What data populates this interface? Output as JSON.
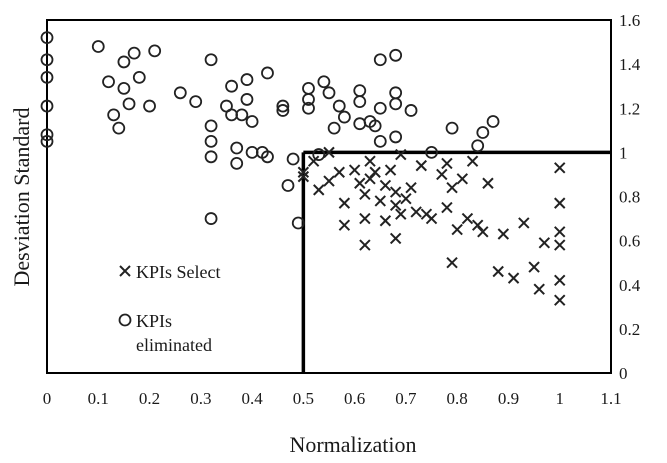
{
  "chart_data": {
    "type": "scatter",
    "xlabel": "Normalization",
    "ylabel": "Desviation Standard",
    "xlim": [
      0,
      1.1
    ],
    "ylim": [
      0,
      1.6
    ],
    "x_ticks": [
      "0",
      "0.1",
      "0.2",
      "0.3",
      "0.4",
      "0.5",
      "0.6",
      "0.7",
      "0.8",
      "0.9",
      "1",
      "1.1"
    ],
    "y_ticks": [
      "0",
      "0.2",
      "0.4",
      "0.6",
      "0.8",
      "1",
      "1.2",
      "1.4",
      "1.6"
    ],
    "y_axis_side": "right",
    "grid": false,
    "legend_position": "bottom-left",
    "threshold_lines": {
      "x": 0.5,
      "y": 1.0
    },
    "series": [
      {
        "name": "KPIs Select",
        "marker": "x",
        "points": [
          [
            0.5,
            0.91
          ],
          [
            0.5,
            0.89
          ],
          [
            0.52,
            0.96
          ],
          [
            0.53,
            0.83
          ],
          [
            0.55,
            0.87
          ],
          [
            0.55,
            1.0
          ],
          [
            0.57,
            0.91
          ],
          [
            0.58,
            0.77
          ],
          [
            0.58,
            0.67
          ],
          [
            0.6,
            0.92
          ],
          [
            0.61,
            0.86
          ],
          [
            0.62,
            0.81
          ],
          [
            0.62,
            0.7
          ],
          [
            0.62,
            0.58
          ],
          [
            0.63,
            0.88
          ],
          [
            0.63,
            0.96
          ],
          [
            0.64,
            0.91
          ],
          [
            0.65,
            0.78
          ],
          [
            0.66,
            0.69
          ],
          [
            0.66,
            0.85
          ],
          [
            0.67,
            0.92
          ],
          [
            0.68,
            0.82
          ],
          [
            0.68,
            0.76
          ],
          [
            0.68,
            0.61
          ],
          [
            0.69,
            0.72
          ],
          [
            0.69,
            0.99
          ],
          [
            0.7,
            0.79
          ],
          [
            0.71,
            0.84
          ],
          [
            0.72,
            0.73
          ],
          [
            0.73,
            0.94
          ],
          [
            0.74,
            0.72
          ],
          [
            0.75,
            0.7
          ],
          [
            0.77,
            0.9
          ],
          [
            0.78,
            0.75
          ],
          [
            0.78,
            0.95
          ],
          [
            0.79,
            0.84
          ],
          [
            0.79,
            0.5
          ],
          [
            0.8,
            0.65
          ],
          [
            0.81,
            0.88
          ],
          [
            0.82,
            0.7
          ],
          [
            0.83,
            0.96
          ],
          [
            0.84,
            0.67
          ],
          [
            0.85,
            0.64
          ],
          [
            0.86,
            0.86
          ],
          [
            0.88,
            0.46
          ],
          [
            0.89,
            0.63
          ],
          [
            0.91,
            0.43
          ],
          [
            0.93,
            0.68
          ],
          [
            0.95,
            0.48
          ],
          [
            0.96,
            0.38
          ],
          [
            0.97,
            0.59
          ],
          [
            1.0,
            0.93
          ],
          [
            1.0,
            0.77
          ],
          [
            1.0,
            0.64
          ],
          [
            1.0,
            0.58
          ],
          [
            1.0,
            0.42
          ],
          [
            1.0,
            0.33
          ]
        ]
      },
      {
        "name": "KPIs\neliminated",
        "marker": "o",
        "points": [
          [
            0.0,
            1.52
          ],
          [
            0.0,
            1.42
          ],
          [
            0.0,
            1.34
          ],
          [
            0.0,
            1.21
          ],
          [
            0.0,
            1.08
          ],
          [
            0.0,
            1.05
          ],
          [
            0.1,
            1.48
          ],
          [
            0.12,
            1.32
          ],
          [
            0.13,
            1.17
          ],
          [
            0.14,
            1.11
          ],
          [
            0.15,
            1.41
          ],
          [
            0.15,
            1.29
          ],
          [
            0.16,
            1.22
          ],
          [
            0.17,
            1.45
          ],
          [
            0.18,
            1.34
          ],
          [
            0.2,
            1.21
          ],
          [
            0.21,
            1.46
          ],
          [
            0.26,
            1.27
          ],
          [
            0.29,
            1.23
          ],
          [
            0.32,
            1.42
          ],
          [
            0.32,
            1.12
          ],
          [
            0.32,
            1.05
          ],
          [
            0.32,
            0.98
          ],
          [
            0.32,
            0.7
          ],
          [
            0.35,
            1.21
          ],
          [
            0.36,
            1.3
          ],
          [
            0.36,
            1.17
          ],
          [
            0.37,
            1.02
          ],
          [
            0.37,
            0.95
          ],
          [
            0.38,
            1.17
          ],
          [
            0.39,
            1.33
          ],
          [
            0.39,
            1.24
          ],
          [
            0.4,
            1.14
          ],
          [
            0.4,
            1.0
          ],
          [
            0.42,
            1.0
          ],
          [
            0.43,
            1.36
          ],
          [
            0.43,
            0.98
          ],
          [
            0.46,
            1.21
          ],
          [
            0.46,
            1.19
          ],
          [
            0.47,
            0.85
          ],
          [
            0.48,
            0.97
          ],
          [
            0.49,
            0.68
          ],
          [
            0.51,
            1.29
          ],
          [
            0.51,
            1.24
          ],
          [
            0.51,
            1.2
          ],
          [
            0.53,
            0.99
          ],
          [
            0.54,
            1.32
          ],
          [
            0.55,
            1.27
          ],
          [
            0.56,
            1.11
          ],
          [
            0.57,
            1.21
          ],
          [
            0.58,
            1.16
          ],
          [
            0.61,
            1.28
          ],
          [
            0.61,
            1.23
          ],
          [
            0.61,
            1.13
          ],
          [
            0.63,
            1.14
          ],
          [
            0.64,
            1.12
          ],
          [
            0.65,
            1.42
          ],
          [
            0.65,
            1.2
          ],
          [
            0.65,
            1.05
          ],
          [
            0.68,
            1.44
          ],
          [
            0.68,
            1.27
          ],
          [
            0.68,
            1.22
          ],
          [
            0.68,
            1.07
          ],
          [
            0.71,
            1.19
          ],
          [
            0.75,
            1.0
          ],
          [
            0.79,
            1.11
          ],
          [
            0.84,
            1.03
          ],
          [
            0.85,
            1.09
          ],
          [
            0.87,
            1.14
          ]
        ]
      }
    ]
  }
}
